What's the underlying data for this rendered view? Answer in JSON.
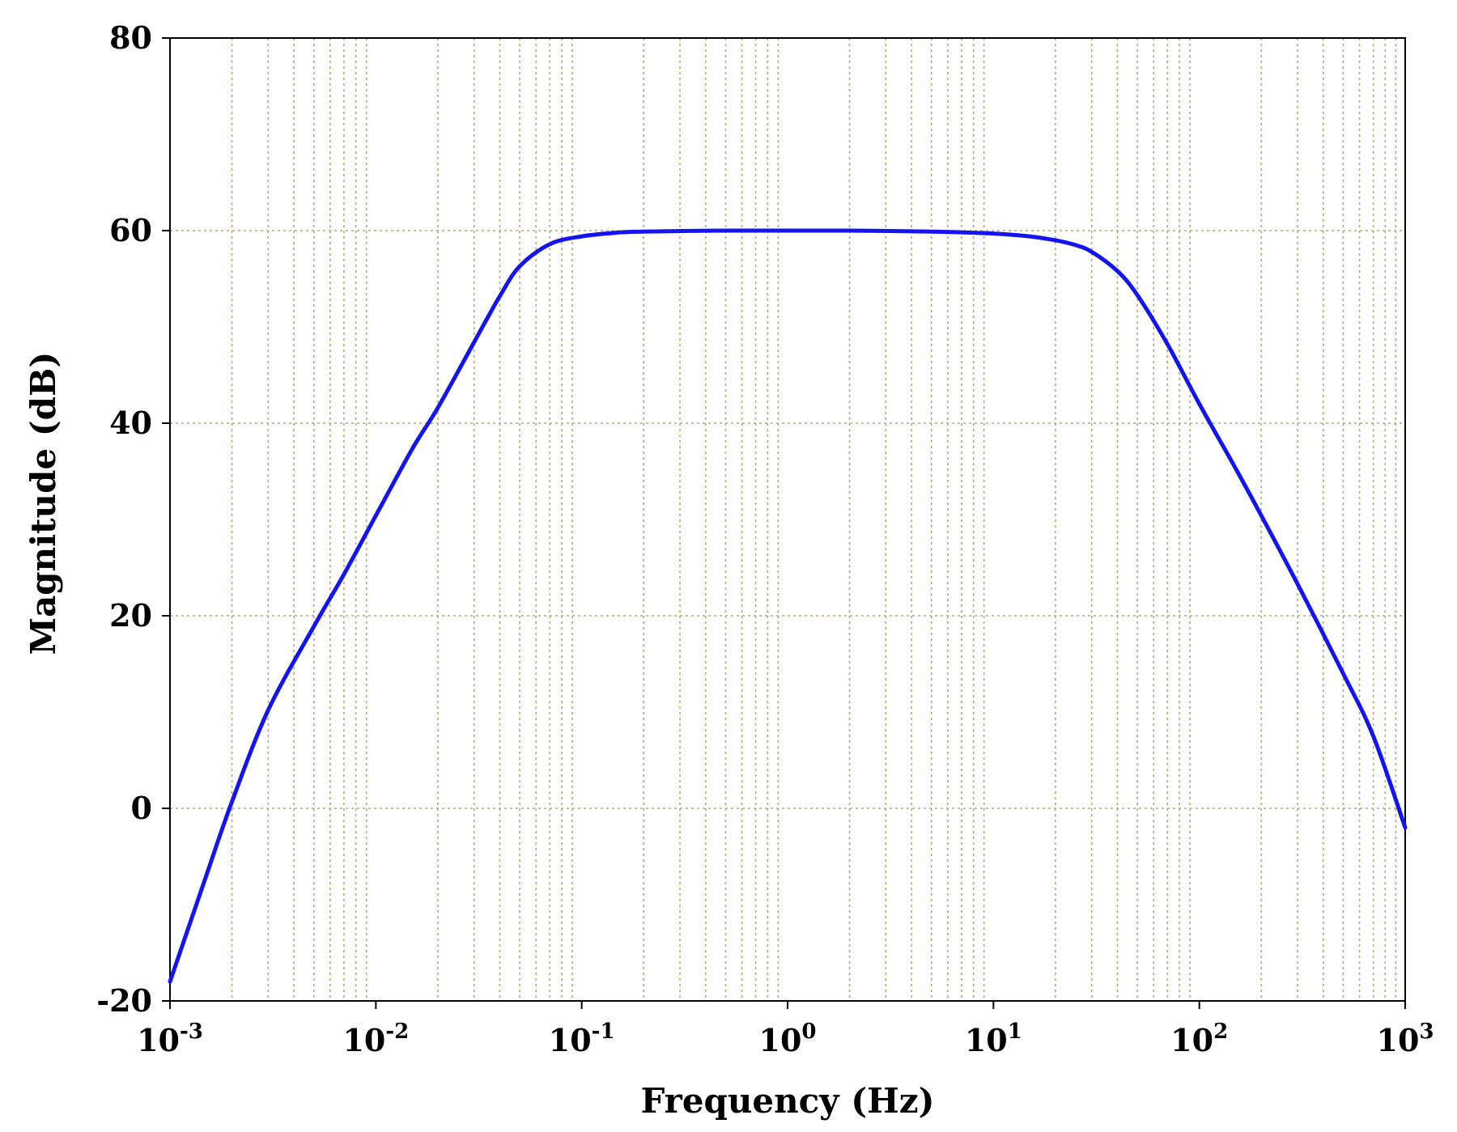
{
  "chart_data": {
    "type": "line",
    "x_scale": "log",
    "xlabel": "Frequency (Hz)",
    "ylabel": "Magnitude (dB)",
    "xlim": [
      0.001,
      1000
    ],
    "ylim": [
      -20,
      80
    ],
    "x_ticks": [
      {
        "value": 0.001,
        "base": "10",
        "exp": "-3"
      },
      {
        "value": 0.01,
        "base": "10",
        "exp": "-2"
      },
      {
        "value": 0.1,
        "base": "10",
        "exp": "-1"
      },
      {
        "value": 1,
        "base": "10",
        "exp": "0"
      },
      {
        "value": 10,
        "base": "10",
        "exp": "1"
      },
      {
        "value": 100,
        "base": "10",
        "exp": "2"
      },
      {
        "value": 1000,
        "base": "10",
        "exp": "3"
      }
    ],
    "y_ticks": [
      {
        "value": -20,
        "label": "-20"
      },
      {
        "value": 0,
        "label": "0"
      },
      {
        "value": 20,
        "label": "20"
      },
      {
        "value": 40,
        "label": "40"
      },
      {
        "value": 60,
        "label": "60"
      },
      {
        "value": 80,
        "label": "80"
      }
    ],
    "grid": true,
    "grid_color": "#b5a77a",
    "line_color": "#1414f0",
    "series": [
      {
        "x": [
          0.001,
          0.0015,
          0.002,
          0.003,
          0.005,
          0.007,
          0.01,
          0.015,
          0.02,
          0.03,
          0.04,
          0.05,
          0.07,
          0.1,
          0.15,
          0.2,
          0.5,
          1,
          2,
          5,
          10,
          15,
          20,
          25,
          30,
          40,
          50,
          70,
          100,
          150,
          200,
          300,
          500,
          700,
          1000
        ],
        "y": [
          -18,
          -7,
          0.7,
          10.2,
          18.9,
          24.3,
          30.4,
          37.3,
          41.6,
          48.4,
          53.2,
          56.3,
          58.6,
          59.4,
          59.8,
          59.9,
          60,
          60,
          60,
          59.9,
          59.7,
          59.4,
          59.0,
          58.5,
          57.8,
          55.8,
          53.3,
          48.2,
          42.0,
          35.3,
          30.4,
          23.3,
          14.0,
          7.5,
          -2
        ]
      }
    ]
  }
}
